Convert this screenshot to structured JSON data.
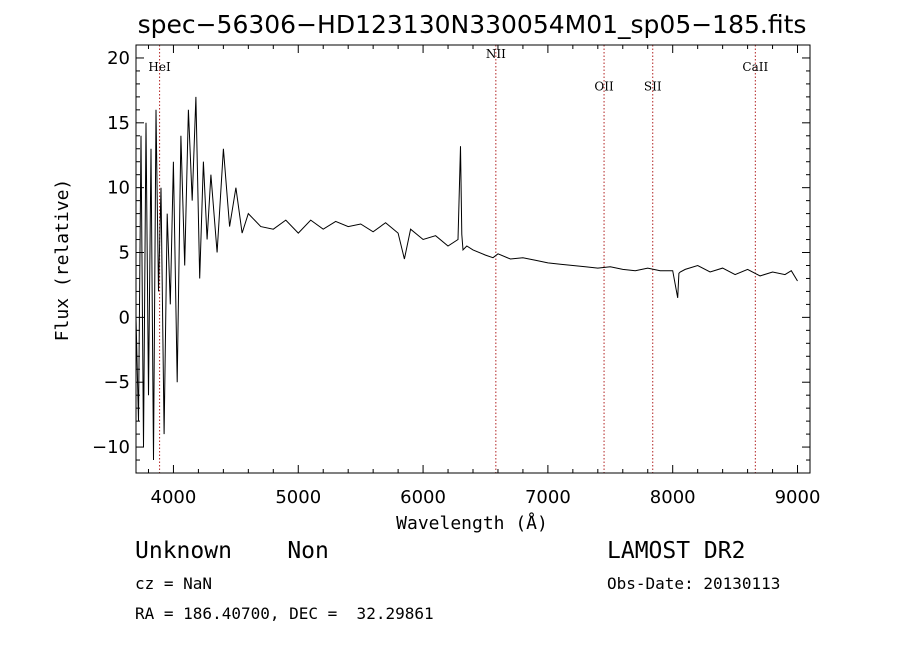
{
  "chart_data": {
    "type": "line",
    "title": "spec−56306−HD123130N330054M01_sp05−185.fits",
    "xlabel": "Wavelength (Å)",
    "ylabel": "Flux (relative)",
    "xlim": [
      3700,
      9100
    ],
    "ylim": [
      -12,
      21
    ],
    "xticks": [
      4000,
      5000,
      6000,
      7000,
      8000,
      9000
    ],
    "xtick_labels": [
      "4000",
      "5000",
      "6000",
      "7000",
      "8000",
      "9000"
    ],
    "yticks": [
      -10,
      -5,
      0,
      5,
      10,
      15,
      20
    ],
    "ytick_labels": [
      "−10",
      "−5",
      "0",
      "5",
      "10",
      "15",
      "20"
    ],
    "grid": false,
    "line_color": "#000000",
    "marker_color": "#b22222",
    "spectral_lines": [
      {
        "name": "HeI",
        "x": 3889,
        "label_y": 19
      },
      {
        "name": "NII",
        "x": 6583,
        "label_y": 20
      },
      {
        "name": "OII",
        "x": 7450,
        "label_y": 17.5
      },
      {
        "name": "SII",
        "x": 7840,
        "label_y": 17.5
      },
      {
        "name": "CaII",
        "x": 8662,
        "label_y": 19
      }
    ],
    "series": [
      {
        "x": [
          3700,
          3720,
          3740,
          3760,
          3780,
          3800,
          3820,
          3840,
          3860,
          3880,
          3900,
          3925,
          3950,
          3975,
          4000,
          4030,
          4060,
          4090,
          4120,
          4150,
          4180,
          4210,
          4240,
          4270,
          4300,
          4350,
          4400,
          4450,
          4500,
          4550,
          4600,
          4700,
          4800,
          4900,
          5000,
          5100,
          5200,
          5300,
          5400,
          5500,
          5600,
          5700,
          5800,
          5850,
          5900,
          6000,
          6100,
          6200,
          6280,
          6300,
          6310,
          6320,
          6350,
          6400,
          6500,
          6560,
          6600,
          6700,
          6800,
          6900,
          7000,
          7100,
          7200,
          7300,
          7400,
          7500,
          7600,
          7700,
          7800,
          7900,
          8000,
          8040,
          8050,
          8060,
          8100,
          8200,
          8300,
          8400,
          8500,
          8600,
          8700,
          8800,
          8900,
          8950,
          9000
        ],
        "y": [
          0,
          -8,
          14,
          -10,
          15,
          -6,
          13,
          -11,
          16,
          2,
          10,
          -9,
          8,
          1,
          12,
          -5,
          14,
          4,
          16,
          9,
          17,
          3,
          12,
          6,
          11,
          5,
          13,
          7,
          10,
          6.5,
          8,
          7,
          6.8,
          7.5,
          6.5,
          7.5,
          6.8,
          7.4,
          7,
          7.2,
          6.6,
          7.3,
          6.5,
          4.5,
          6.8,
          6,
          6.3,
          5.5,
          6,
          13.2,
          6.4,
          5.2,
          5.5,
          5.2,
          4.8,
          4.6,
          4.9,
          4.5,
          4.6,
          4.4,
          4.2,
          4.1,
          4,
          3.9,
          3.8,
          3.9,
          3.7,
          3.6,
          3.8,
          3.6,
          3.6,
          1.5,
          3.4,
          3.5,
          3.7,
          4,
          3.5,
          3.8,
          3.3,
          3.7,
          3.2,
          3.5,
          3.3,
          3.6,
          2.8
        ]
      }
    ]
  },
  "info": {
    "object": "Unknown    Non",
    "survey": "LAMOST DR2",
    "cz": "cz = NaN",
    "obsdate": "Obs-Date: 20130113",
    "radec": "RA = 186.40700, DEC =  32.29861"
  }
}
